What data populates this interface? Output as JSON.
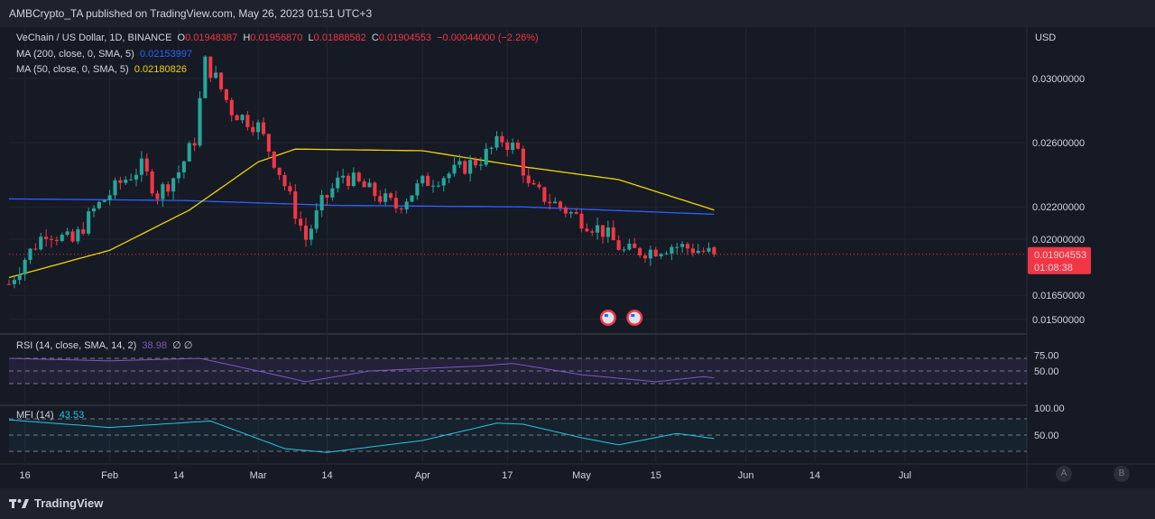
{
  "header": {
    "published": "AMBCrypto_TA published on TradingView.com, May 26, 2023 01:51 UTC+3"
  },
  "legend": {
    "symbol": "VeChain / US Dollar, 1D, BINANCE",
    "o_label": "O",
    "o": "0.01948387",
    "h_label": "H",
    "h": "0.01956870",
    "l_label": "L",
    "l": "0.01888582",
    "c_label": "C",
    "c": "0.01904553",
    "change": "−0.00044000 (−2.26%)",
    "ma200_label": "MA (200, close, 0, SMA, 5)",
    "ma200": "0.02153997",
    "ma50_label": "MA (50, close, 0, SMA, 5)",
    "ma50": "0.02180826",
    "rsi_label": "RSI (14, close, SMA, 14, 2)",
    "rsi": "38.98",
    "rsi_extra": "∅ ∅",
    "mfi_label": "MFI (14)",
    "mfi": "43.53"
  },
  "price_axis": {
    "currency": "USD",
    "ticks": [
      "0.03000000",
      "0.02600000",
      "0.02200000",
      "0.02000000",
      "0.01650000",
      "0.01500000"
    ]
  },
  "last_price": {
    "value": "0.01904553",
    "countdown": "01:08:38"
  },
  "rsi_axis": [
    "75.00",
    "50.00"
  ],
  "mfi_axis": [
    "100.00",
    "50.00"
  ],
  "time_axis": [
    "16",
    "Feb",
    "14",
    "Mar",
    "14",
    "Apr",
    "17",
    "May",
    "15",
    "Jun",
    "14",
    "Jul"
  ],
  "footer": {
    "brand": "TradingView",
    "btn_a": "A",
    "btn_b": "B"
  },
  "colors": {
    "up": "#26a69a",
    "down": "#f23645",
    "ma200": "#2962ff",
    "ma50": "#f0d500",
    "rsi": "#7e57c2",
    "mfi": "#26c6da"
  },
  "chart_data": {
    "type": "candlestick",
    "title": "VeChain / US Dollar, 1D, BINANCE",
    "ylabel": "USD",
    "ylim": [
      0.0142,
      0.0332
    ],
    "x_range": [
      "2023-01-13",
      "2023-07-24"
    ],
    "closes": [
      {
        "date": "2023-01-13",
        "close": 0.0172
      },
      {
        "date": "2023-01-16",
        "close": 0.0188
      },
      {
        "date": "2023-01-20",
        "close": 0.0205
      },
      {
        "date": "2023-01-25",
        "close": 0.0198
      },
      {
        "date": "2023-01-29",
        "close": 0.0218
      },
      {
        "date": "2023-02-03",
        "close": 0.0235
      },
      {
        "date": "2023-02-07",
        "close": 0.0245
      },
      {
        "date": "2023-02-10",
        "close": 0.0228
      },
      {
        "date": "2023-02-14",
        "close": 0.0242
      },
      {
        "date": "2023-02-17",
        "close": 0.0262
      },
      {
        "date": "2023-02-19",
        "close": 0.031
      },
      {
        "date": "2023-02-21",
        "close": 0.03
      },
      {
        "date": "2023-02-24",
        "close": 0.028
      },
      {
        "date": "2023-03-01",
        "close": 0.027
      },
      {
        "date": "2023-03-05",
        "close": 0.0242
      },
      {
        "date": "2023-03-10",
        "close": 0.02
      },
      {
        "date": "2023-03-13",
        "close": 0.0222
      },
      {
        "date": "2023-03-17",
        "close": 0.024
      },
      {
        "date": "2023-03-22",
        "close": 0.023
      },
      {
        "date": "2023-03-27",
        "close": 0.022
      },
      {
        "date": "2023-04-01",
        "close": 0.0235
      },
      {
        "date": "2023-04-07",
        "close": 0.0242
      },
      {
        "date": "2023-04-12",
        "close": 0.025
      },
      {
        "date": "2023-04-16",
        "close": 0.0262
      },
      {
        "date": "2023-04-19",
        "close": 0.0255
      },
      {
        "date": "2023-04-21",
        "close": 0.0232
      },
      {
        "date": "2023-04-26",
        "close": 0.0222
      },
      {
        "date": "2023-05-01",
        "close": 0.0212
      },
      {
        "date": "2023-05-05",
        "close": 0.0205
      },
      {
        "date": "2023-05-09",
        "close": 0.0192
      },
      {
        "date": "2023-05-14",
        "close": 0.0193
      },
      {
        "date": "2023-05-18",
        "close": 0.0196
      },
      {
        "date": "2023-05-22",
        "close": 0.0194
      },
      {
        "date": "2023-05-26",
        "close": 0.01904553
      }
    ],
    "ma200": [
      {
        "date": "2023-01-13",
        "value": 0.0225
      },
      {
        "date": "2023-02-15",
        "value": 0.0224
      },
      {
        "date": "2023-03-15",
        "value": 0.0221
      },
      {
        "date": "2023-04-20",
        "value": 0.022
      },
      {
        "date": "2023-05-26",
        "value": 0.02153997
      }
    ],
    "ma50": [
      {
        "date": "2023-01-13",
        "value": 0.0176
      },
      {
        "date": "2023-02-01",
        "value": 0.0193
      },
      {
        "date": "2023-02-16",
        "value": 0.0218
      },
      {
        "date": "2023-03-01",
        "value": 0.0248
      },
      {
        "date": "2023-03-08",
        "value": 0.0256
      },
      {
        "date": "2023-04-01",
        "value": 0.0255
      },
      {
        "date": "2023-04-20",
        "value": 0.0245
      },
      {
        "date": "2023-05-08",
        "value": 0.0237
      },
      {
        "date": "2023-05-26",
        "value": 0.02180826
      }
    ],
    "rsi": {
      "ylim": [
        0,
        100
      ],
      "bands": [
        70,
        50,
        30
      ],
      "points": [
        {
          "date": "2023-01-13",
          "value": 70
        },
        {
          "date": "2023-02-01",
          "value": 66
        },
        {
          "date": "2023-02-18",
          "value": 70
        },
        {
          "date": "2023-03-01",
          "value": 50
        },
        {
          "date": "2023-03-10",
          "value": 33
        },
        {
          "date": "2023-03-22",
          "value": 50
        },
        {
          "date": "2023-04-12",
          "value": 58
        },
        {
          "date": "2023-04-18",
          "value": 62
        },
        {
          "date": "2023-05-01",
          "value": 44
        },
        {
          "date": "2023-05-15",
          "value": 33
        },
        {
          "date": "2023-05-24",
          "value": 41
        },
        {
          "date": "2023-05-26",
          "value": 38.98
        }
      ]
    },
    "mfi": {
      "ylim": [
        0,
        100
      ],
      "bands": [
        80,
        50,
        20
      ],
      "points": [
        {
          "date": "2023-01-13",
          "value": 78
        },
        {
          "date": "2023-02-01",
          "value": 64
        },
        {
          "date": "2023-02-20",
          "value": 76
        },
        {
          "date": "2023-03-06",
          "value": 25
        },
        {
          "date": "2023-03-14",
          "value": 18
        },
        {
          "date": "2023-04-01",
          "value": 40
        },
        {
          "date": "2023-04-15",
          "value": 72
        },
        {
          "date": "2023-04-20",
          "value": 70
        },
        {
          "date": "2023-05-01",
          "value": 45
        },
        {
          "date": "2023-05-08",
          "value": 32
        },
        {
          "date": "2023-05-19",
          "value": 53
        },
        {
          "date": "2023-05-26",
          "value": 43.53
        }
      ]
    }
  }
}
